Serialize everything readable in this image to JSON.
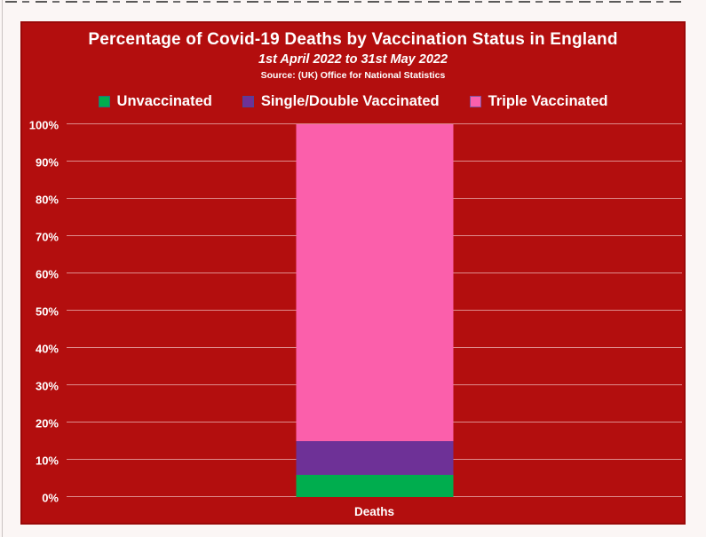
{
  "canvas": {
    "page_background": "#FBF6F5",
    "panel_background": "#B30E0E",
    "panel_border": "#9A0909",
    "grid_color": "#DE8B8B",
    "text_color": "#FFFFFF"
  },
  "header": {
    "title": "Percentage of Covid-19 Deaths by Vaccination Status in England",
    "subtitle": "1st April 2022 to 31st May 2022",
    "source": "Source: (UK) Office for National Statistics"
  },
  "chart_data": {
    "type": "bar",
    "stacked": true,
    "title": "Percentage of Covid-19 Deaths by Vaccination Status in England",
    "subtitle": "1st April 2022 to 31st May 2022",
    "source_note": "Source: (UK) Office for National Statistics",
    "categories": [
      "Deaths"
    ],
    "series": [
      {
        "name": "Unvaccinated",
        "values": [
          6
        ],
        "color": "#00AD4E"
      },
      {
        "name": "Single/Double Vaccinated",
        "values": [
          9
        ],
        "color": "#6E3197"
      },
      {
        "name": "Triple Vaccinated",
        "values": [
          85
        ],
        "color": "#FB5FAB"
      }
    ],
    "xlabel": "",
    "ylabel": "",
    "ylim": [
      0,
      100
    ],
    "ytick_step": 10,
    "ytick_suffix": "%",
    "grid": true,
    "legend_position": "top"
  }
}
